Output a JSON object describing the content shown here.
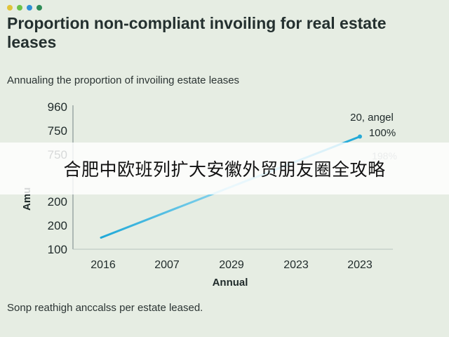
{
  "window": {
    "dot_colors": [
      "#e0c43a",
      "#6cc24a",
      "#2f8fd6",
      "#2e8b57"
    ]
  },
  "title": "Proportion non-compliant invoiling for real estate leases",
  "subtitle": "Annualing the proportion of invoiling estate leases",
  "footnote": "Sonp reathigh anccalss per estate leased.",
  "banner": "合肥中欧班列扩大安徽外贸朋友圈全攻略",
  "chart_data": {
    "type": "line",
    "xlabel": "Annual",
    "ylabel": "Amu",
    "categories": [
      "2016",
      "2007",
      "2029",
      "2023",
      "2023"
    ],
    "y_ticks": [
      "960",
      "750",
      "750",
      "200",
      "200",
      "100"
    ],
    "series": [
      {
        "values_at_categories": {
          "start": [
            "2016",
            170
          ],
          "end": [
            "2023",
            780
          ]
        },
        "color": "#28a9d6"
      }
    ],
    "annotations": [
      "20, angel",
      "100%",
      "198%"
    ],
    "grid": false
  }
}
